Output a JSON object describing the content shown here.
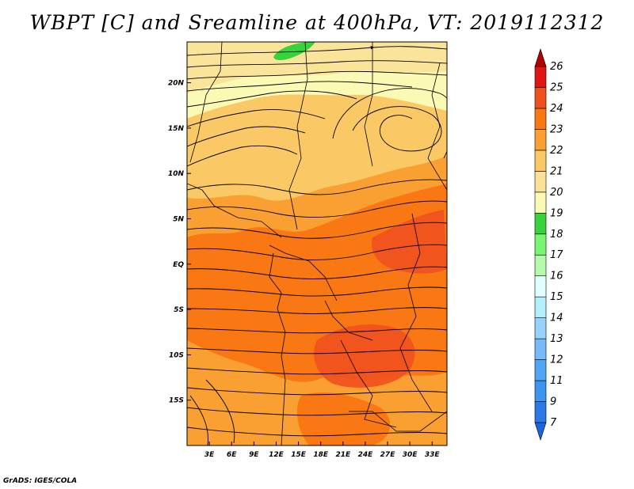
{
  "title": "WBPT [C] and Sreamline at 400hPa, VT: 2019112312",
  "credit": "GrADS: IGES/COLA",
  "map": {
    "lon_range": [
      0,
      35
    ],
    "lat_range": [
      -20,
      24.5
    ],
    "x_ticks": [
      "3E",
      "6E",
      "9E",
      "12E",
      "15E",
      "18E",
      "21E",
      "24E",
      "27E",
      "30E",
      "33E"
    ],
    "x_tick_values": [
      3,
      6,
      9,
      12,
      15,
      18,
      21,
      24,
      27,
      30,
      33
    ],
    "y_ticks": [
      "20N",
      "15N",
      "10N",
      "5N",
      "EQ",
      "5S",
      "10S",
      "15S"
    ],
    "y_tick_values": [
      20,
      15,
      10,
      5,
      0,
      -5,
      -10,
      -15
    ],
    "layers": [
      "shaded wet-bulb potential temperature",
      "streamlines",
      "country borders"
    ]
  },
  "colorbar": {
    "labels": [
      "7",
      "9",
      "11",
      "12",
      "13",
      "14",
      "15",
      "16",
      "17",
      "18",
      "19",
      "20",
      "21",
      "22",
      "23",
      "24",
      "25",
      "26"
    ],
    "colors": [
      "#1e64dc",
      "#2d78e6",
      "#3c96f0",
      "#50a5f5",
      "#78b9fa",
      "#96d2fa",
      "#b4f0fa",
      "#e1ffff",
      "#b4faaa",
      "#78f573",
      "#37d23c",
      "#fafab4",
      "#fae196",
      "#fac864",
      "#faa032",
      "#fa7814",
      "#f0501e",
      "#e11414",
      "#b40000"
    ]
  }
}
